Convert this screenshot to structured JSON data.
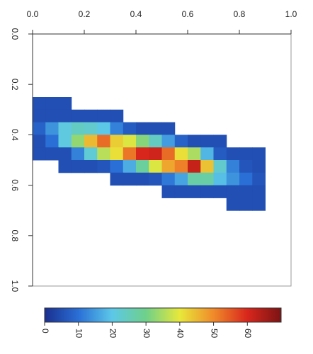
{
  "chart_data": {
    "type": "heatmap",
    "x": [
      0.025,
      0.075,
      0.125,
      0.175,
      0.225,
      0.275,
      0.325,
      0.375,
      0.425,
      0.475,
      0.525,
      0.575,
      0.625,
      0.675,
      0.725,
      0.775,
      0.825,
      0.875
    ],
    "y": [
      0.275,
      0.325,
      0.375,
      0.425,
      0.475,
      0.525,
      0.575,
      0.625,
      0.675
    ],
    "values": [
      [
        5,
        5,
        5,
        null,
        null,
        null,
        null,
        null,
        null,
        null,
        null,
        null,
        null,
        null,
        null,
        null,
        null,
        null
      ],
      [
        5,
        5,
        5,
        5,
        5,
        5,
        5,
        null,
        null,
        null,
        null,
        null,
        null,
        null,
        null,
        null,
        null,
        null
      ],
      [
        8,
        14,
        21,
        24,
        23,
        20,
        12,
        7,
        5,
        5,
        5,
        null,
        null,
        null,
        null,
        null,
        null,
        null
      ],
      [
        5,
        10,
        21,
        33,
        45,
        53,
        43,
        39,
        32,
        24,
        15,
        8,
        5,
        5,
        5,
        null,
        null,
        null
      ],
      [
        5,
        5,
        5,
        12,
        22,
        36,
        41,
        52,
        60,
        61,
        53,
        41,
        35,
        18,
        7,
        5,
        5,
        5
      ],
      [
        null,
        null,
        5,
        5,
        5,
        6,
        10,
        17,
        28,
        39,
        47,
        51,
        62,
        44,
        23,
        12,
        6,
        5
      ],
      [
        null,
        null,
        null,
        null,
        null,
        null,
        5,
        5,
        5,
        6,
        11,
        16,
        27,
        27,
        19,
        14,
        10,
        6
      ],
      [
        null,
        null,
        null,
        null,
        null,
        null,
        null,
        null,
        null,
        null,
        5,
        5,
        5,
        5,
        5,
        5,
        5,
        5
      ],
      [
        null,
        null,
        null,
        null,
        null,
        null,
        null,
        null,
        null,
        null,
        null,
        null,
        null,
        null,
        null,
        5,
        5,
        5
      ]
    ],
    "xlim": [
      0,
      1
    ],
    "xticks": [
      {
        "value": 0,
        "label": "0.0"
      },
      0.2,
      0.4,
      0.6,
      0.8,
      {
        "value": 1,
        "label": "1.0"
      }
    ],
    "ylim": [
      0,
      1
    ],
    "yticks": [
      {
        "value": 0,
        "label": "0.0"
      },
      0.2,
      0.4,
      0.6,
      0.8,
      {
        "value": 1,
        "label": "1.0"
      }
    ],
    "y_inverted": true,
    "clim": [
      0,
      70
    ],
    "cticks": [
      0,
      10,
      20,
      30,
      40,
      50,
      60
    ],
    "colormap": [
      "#1a2f8f",
      "#2a6fd6",
      "#5cc8e8",
      "#6fd08a",
      "#e8e83a",
      "#f08a2a",
      "#d8261c",
      "#7a1414"
    ]
  }
}
